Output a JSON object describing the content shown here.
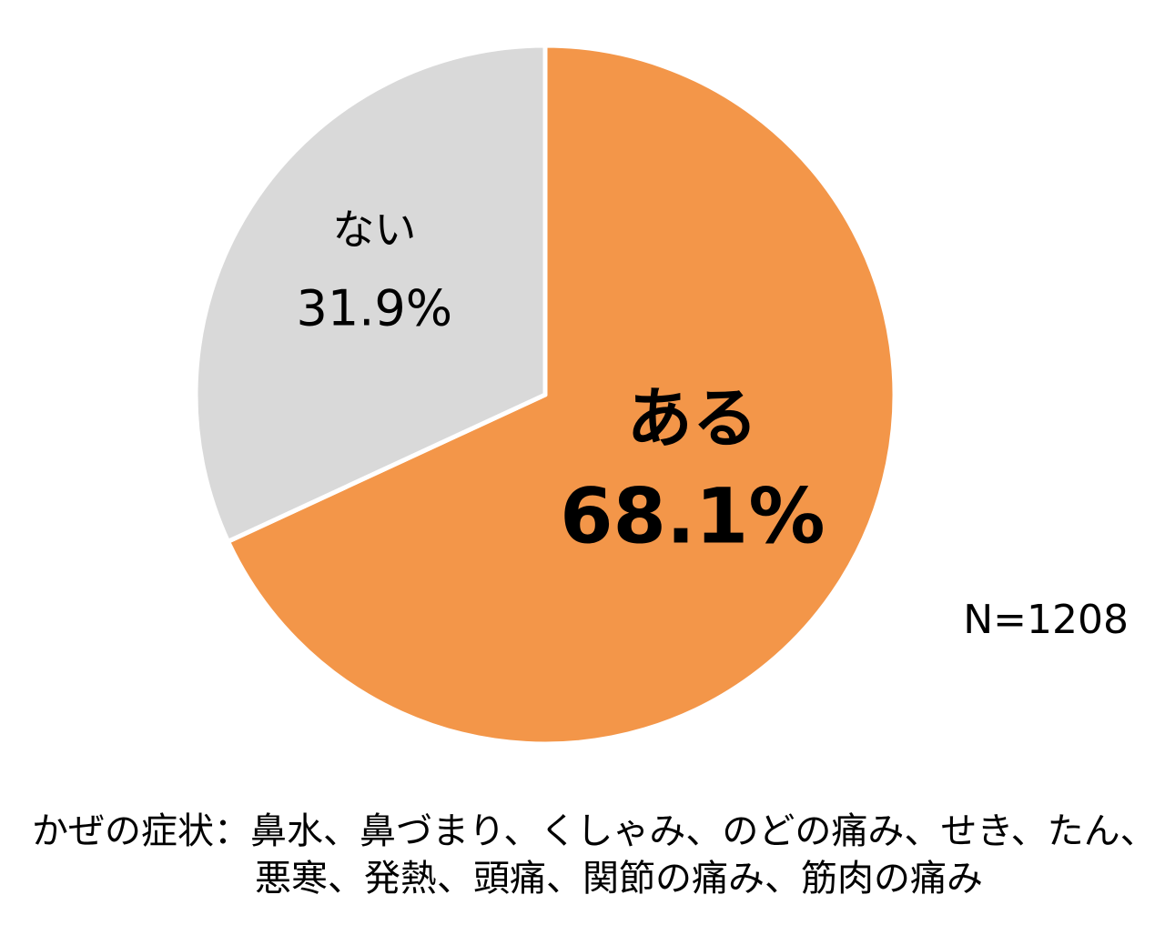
{
  "chart_data": {
    "type": "pie",
    "categories": [
      "ある",
      "ない"
    ],
    "values": [
      68.1,
      31.9
    ],
    "value_labels": [
      "68.1%",
      "31.9%"
    ],
    "colors": [
      "#f39649",
      "#d9d9d9"
    ],
    "annotation": "N=1208",
    "footnote": [
      "かぜの症状：鼻水、鼻づまり、くしゃみ、のどの痛み、せき、たん、",
      "悪寒、発熱、頭痛、関節の痛み、筋肉の痛み"
    ]
  }
}
